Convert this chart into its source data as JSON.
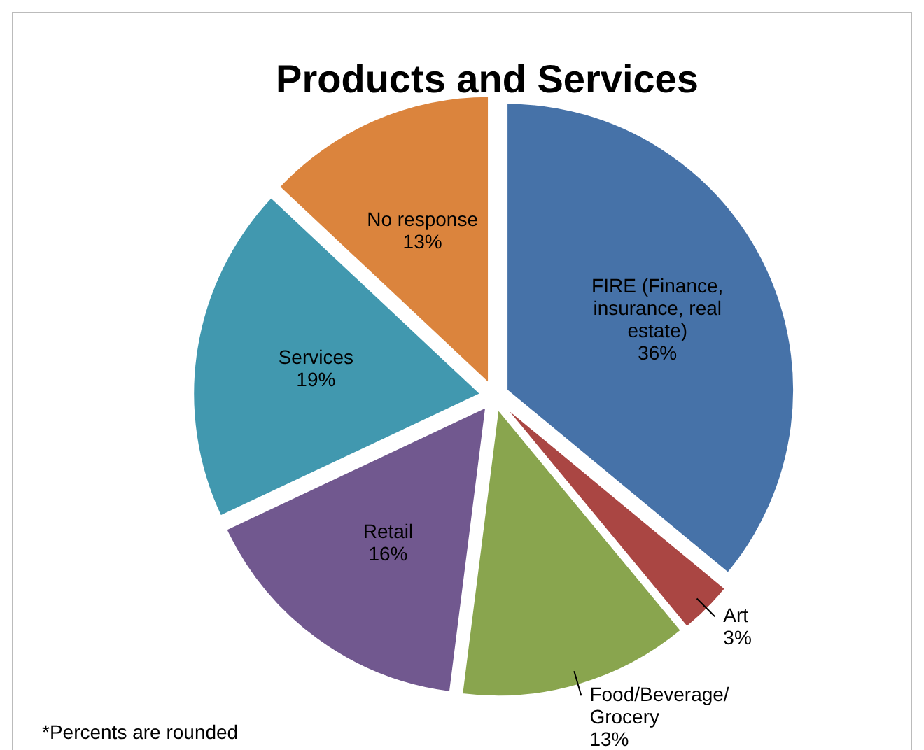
{
  "chart_data": {
    "type": "pie",
    "title": "Products and Services",
    "categories": [
      "FIRE (Finance, insurance, real estate)",
      "Art",
      "Food/Beverage/ Grocery",
      "Retail",
      "Services",
      "No response"
    ],
    "values": [
      36,
      3,
      13,
      16,
      19,
      13
    ],
    "colors": [
      "#4672a8",
      "#aa4643",
      "#89a54e",
      "#71588f",
      "#4198af",
      "#db843d"
    ],
    "value_labels": [
      "36%",
      "3%",
      "13%",
      "16%",
      "19%",
      "13%"
    ],
    "annotations": [
      "*Percents are rounded"
    ]
  }
}
